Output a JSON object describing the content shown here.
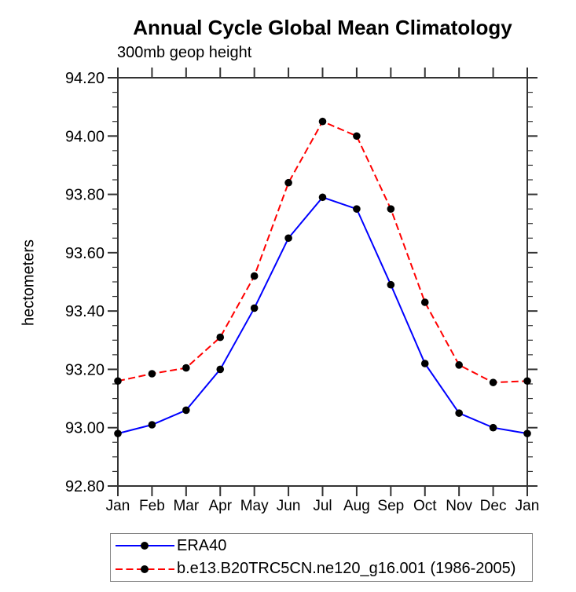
{
  "chart": {
    "title": "Annual Cycle Global Mean Climatology",
    "subtitle": "300mb geop height",
    "ylabel": "hectometers"
  },
  "chart_data": {
    "type": "line",
    "title": "Annual Cycle Global Mean Climatology",
    "subtitle": "300mb geop height",
    "xlabel": "",
    "ylabel": "hectometers",
    "x_categories": [
      "Jan",
      "Feb",
      "Mar",
      "Apr",
      "May",
      "Jun",
      "Jul",
      "Aug",
      "Sep",
      "Oct",
      "Nov",
      "Dec",
      "Jan"
    ],
    "series": [
      {
        "name": "ERA40",
        "color": "#0000ff",
        "style": "solid",
        "marker": "filled-circle",
        "values": [
          92.98,
          93.01,
          93.06,
          93.2,
          93.41,
          93.65,
          93.79,
          93.75,
          93.49,
          93.22,
          93.05,
          93.0,
          92.98
        ]
      },
      {
        "name": "b.e13.B20TRC5CN.ne120_g16.001 (1986-2005)",
        "color": "#ff0000",
        "style": "dashed",
        "marker": "filled-circle",
        "values": [
          93.16,
          93.185,
          93.205,
          93.31,
          93.52,
          93.84,
          94.05,
          94.0,
          93.75,
          93.43,
          93.215,
          93.155,
          93.16
        ]
      }
    ],
    "marker_color": "#000000",
    "axis_color": "#333333",
    "ylim": [
      92.8,
      94.2
    ],
    "ytick_step": 0.2,
    "yminor_step": 0.05,
    "ytick_labels": [
      "92.80",
      "93.00",
      "93.20",
      "93.40",
      "93.60",
      "93.80",
      "94.00",
      "94.20"
    ],
    "grid": false,
    "legend_position": "bottom-left-box"
  }
}
